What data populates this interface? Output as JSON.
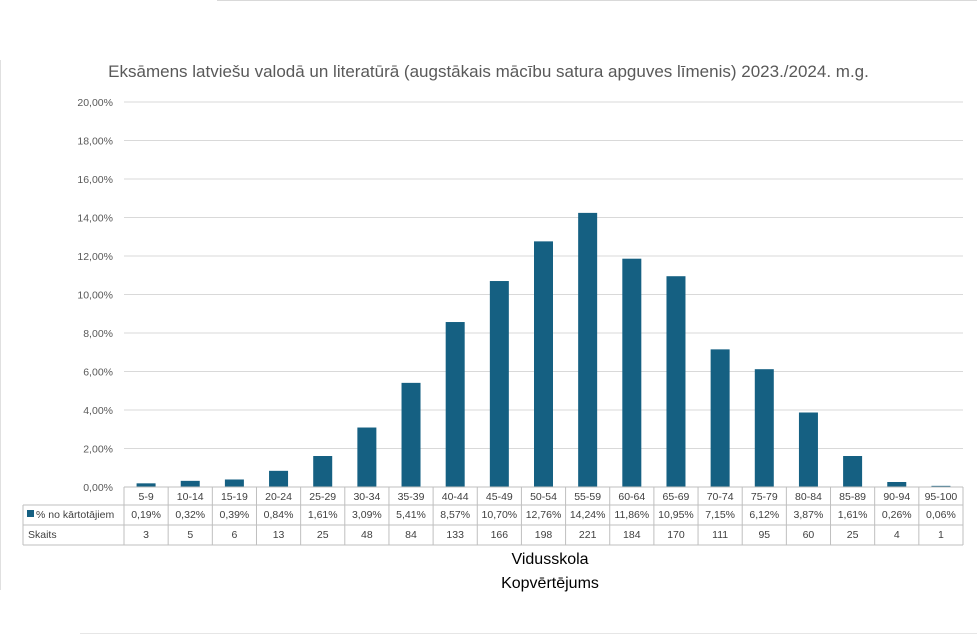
{
  "chart_data": {
    "type": "bar",
    "title": "Eksāmens latviešu valodā un literatūrā (augstākais mācību satura apguves līmenis) 2023./2024. m.g.",
    "categories": [
      "5-9",
      "10-14",
      "15-19",
      "20-24",
      "25-29",
      "30-34",
      "35-39",
      "40-44",
      "45-49",
      "50-54",
      "55-59",
      "60-64",
      "65-69",
      "70-74",
      "75-79",
      "80-84",
      "85-89",
      "90-94",
      "95-100"
    ],
    "series": [
      {
        "name": "% no kārtotājiem",
        "color": "#156082",
        "values": [
          0.19,
          0.32,
          0.39,
          0.84,
          1.61,
          3.09,
          5.41,
          8.57,
          10.7,
          12.76,
          14.24,
          11.86,
          10.95,
          7.15,
          6.12,
          3.87,
          1.61,
          0.26,
          0.06
        ],
        "labels": [
          "0,19%",
          "0,32%",
          "0,39%",
          "0,84%",
          "1,61%",
          "3,09%",
          "5,41%",
          "8,57%",
          "10,70%",
          "12,76%",
          "14,24%",
          "11,86%",
          "10,95%",
          "7,15%",
          "6,12%",
          "3,87%",
          "1,61%",
          "0,26%",
          "0,06%"
        ]
      }
    ],
    "table_rows": [
      {
        "label": "Skaits",
        "values": [
          "3",
          "5",
          "6",
          "13",
          "25",
          "48",
          "84",
          "133",
          "166",
          "198",
          "221",
          "184",
          "170",
          "111",
          "95",
          "60",
          "25",
          "4",
          "1"
        ]
      }
    ],
    "y_ticks": [
      "0,00%",
      "2,00%",
      "4,00%",
      "6,00%",
      "8,00%",
      "10,00%",
      "12,00%",
      "14,00%",
      "16,00%",
      "18,00%",
      "20,00%"
    ],
    "ylim": [
      0,
      20
    ],
    "grid": true,
    "xlabel_lines": [
      "Vidusskola",
      "Kopvērtējums"
    ],
    "legend": "in data table"
  }
}
